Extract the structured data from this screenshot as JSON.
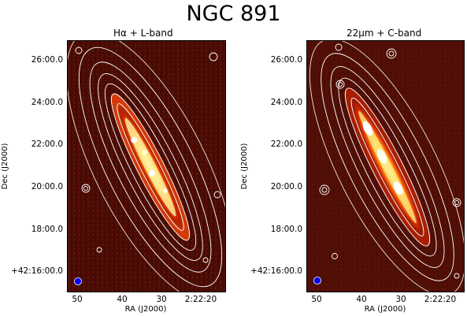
{
  "figure": {
    "title": "NGC 891",
    "xlabel": "RA (J2000)",
    "ylabel": "Dec (J2000)",
    "y_ticks": [
      "26:00.0",
      "24:00.0",
      "22:00.0",
      "20:00.0",
      "18:00.0",
      "+42:16:00.0"
    ],
    "x_ticks": [
      "50",
      "40",
      "30",
      "2:22:20"
    ]
  },
  "panels": [
    {
      "title": "Hα + L-band",
      "colormap": "hot",
      "contour_color": "#ffffff",
      "beam_color": "#0000ff"
    },
    {
      "title": "22μm + C-band",
      "colormap": "hot",
      "contour_color": "#ffffff",
      "beam_color": "#0000ff"
    }
  ]
}
